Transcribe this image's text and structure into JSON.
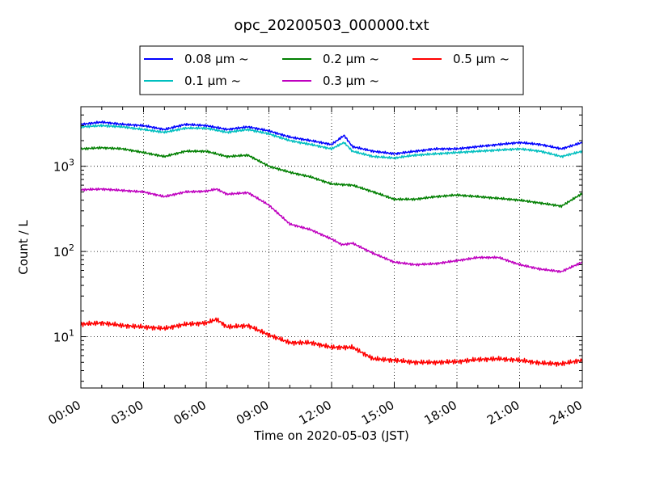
{
  "chart_data": {
    "type": "line",
    "title": "opc_20200503_000000.txt",
    "xlabel": "Time on 2020-05-03 (JST)",
    "ylabel": "Count / L",
    "x_unit": "hours (JST)",
    "xlim": [
      0,
      24
    ],
    "ylim": [
      2.5,
      5000
    ],
    "yscale": "log",
    "grid": true,
    "legend_position": "top-center",
    "legend_columns": 3,
    "x_tick_labels": [
      "00:00",
      "03:00",
      "06:00",
      "09:00",
      "12:00",
      "15:00",
      "18:00",
      "21:00",
      "24:00"
    ],
    "x_ticks": [
      0,
      3,
      6,
      9,
      12,
      15,
      18,
      21,
      24
    ],
    "y_ticks": [
      10,
      100,
      1000
    ],
    "y_tick_labels": [
      {
        "base": "10",
        "exp": "1"
      },
      {
        "base": "10",
        "exp": "2"
      },
      {
        "base": "10",
        "exp": "3"
      }
    ],
    "series": [
      {
        "name": "0.08 μm ~",
        "color": "#0000ff",
        "x": [
          0,
          1,
          2,
          3,
          4,
          5,
          6,
          7,
          8,
          9,
          10,
          11,
          12,
          12.6,
          13,
          14,
          15,
          16,
          17,
          18,
          19,
          20,
          21,
          22,
          23,
          24
        ],
        "values": [
          3100,
          3300,
          3100,
          3000,
          2700,
          3100,
          3000,
          2700,
          2900,
          2600,
          2200,
          2000,
          1800,
          2300,
          1700,
          1500,
          1400,
          1500,
          1600,
          1600,
          1700,
          1800,
          1900,
          1800,
          1600,
          1900
        ]
      },
      {
        "name": "0.1 μm ~",
        "color": "#00bfbf",
        "x": [
          0,
          1,
          2,
          3,
          4,
          5,
          6,
          7,
          8,
          9,
          10,
          11,
          12,
          12.6,
          13,
          14,
          15,
          16,
          17,
          18,
          19,
          20,
          21,
          22,
          23,
          24
        ],
        "values": [
          2900,
          3000,
          2900,
          2700,
          2500,
          2800,
          2800,
          2500,
          2700,
          2400,
          2000,
          1800,
          1600,
          1900,
          1500,
          1300,
          1250,
          1350,
          1400,
          1450,
          1500,
          1550,
          1600,
          1500,
          1300,
          1500
        ]
      },
      {
        "name": "0.2 μm ~",
        "color": "#007f00",
        "x": [
          0,
          1,
          2,
          3,
          4,
          5,
          6,
          7,
          8,
          9,
          10,
          11,
          12,
          13,
          14,
          15,
          16,
          17,
          18,
          19,
          20,
          21,
          22,
          23,
          24
        ],
        "values": [
          1600,
          1650,
          1600,
          1450,
          1300,
          1500,
          1500,
          1300,
          1350,
          1000,
          850,
          750,
          620,
          600,
          500,
          410,
          410,
          440,
          460,
          440,
          420,
          400,
          370,
          340,
          480
        ]
      },
      {
        "name": "0.3 μm ~",
        "color": "#bf00bf",
        "x": [
          0,
          1,
          2,
          3,
          4,
          5,
          6,
          6.5,
          7,
          8,
          9,
          10,
          11,
          12,
          12.5,
          13,
          14,
          15,
          16,
          17,
          18,
          19,
          20,
          21,
          22,
          23,
          24
        ],
        "values": [
          530,
          540,
          520,
          500,
          440,
          500,
          510,
          540,
          470,
          490,
          350,
          210,
          180,
          140,
          120,
          125,
          95,
          75,
          70,
          72,
          78,
          85,
          85,
          70,
          62,
          58,
          75
        ]
      },
      {
        "name": "0.5 μm ~",
        "color": "#ff0000",
        "x": [
          0,
          1,
          2,
          3,
          4,
          5,
          6,
          6.5,
          7,
          8,
          9,
          10,
          11,
          12,
          13,
          14,
          15,
          16,
          17,
          18,
          19,
          20,
          21,
          22,
          23,
          24
        ],
        "values": [
          14,
          14.5,
          13.5,
          13,
          12.5,
          14,
          14.5,
          16,
          13,
          13.5,
          10.5,
          8.5,
          8.5,
          7.5,
          7.5,
          5.5,
          5.3,
          5,
          5,
          5.1,
          5.4,
          5.5,
          5.3,
          4.9,
          4.8,
          5.3
        ]
      }
    ]
  }
}
